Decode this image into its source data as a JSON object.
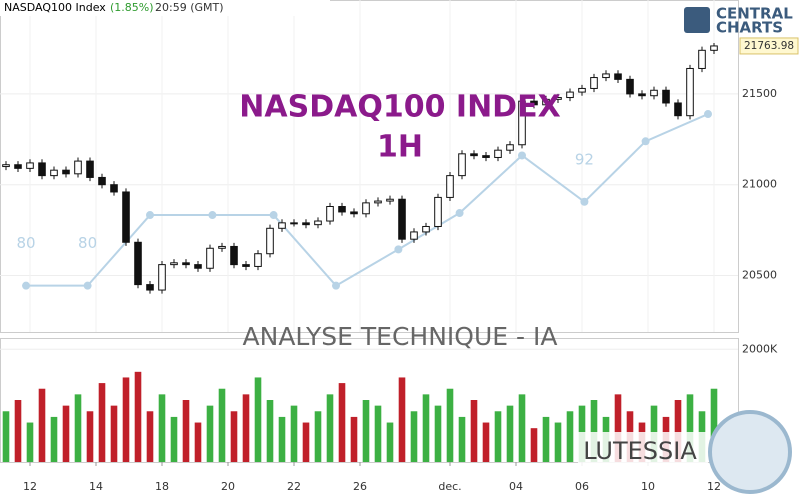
{
  "chart_data": {
    "type": "candlestick",
    "title": "NASDAQ100 Index",
    "change": "(1.85%)",
    "time": "20:59 (GMT)",
    "watermark_title": "NASDAQ100 INDEX",
    "watermark_timeframe": "1H",
    "subtitle": "ANALYSE TECHNIQUE - IA",
    "brand": "LUTESSIA",
    "logo": [
      "CENTRAL",
      "CHARTS"
    ],
    "open": [
      21100,
      21110,
      21090,
      21120,
      21050,
      21080,
      21060,
      21130,
      21040,
      21000,
      20960,
      20683,
      20450,
      20420,
      20560,
      20570,
      20560,
      20540,
      20650,
      20660,
      20560,
      20550,
      20620,
      20760,
      20790,
      20790,
      20780,
      20800,
      20880,
      20850,
      20840,
      20900,
      20910,
      20920,
      20700,
      20740,
      20770,
      20930,
      21050,
      21170,
      21160,
      21150,
      21190,
      21220,
      21460,
      21440,
      21470,
      21480,
      21510,
      21530,
      21590,
      21610,
      21580,
      21500,
      21490,
      21520,
      21450,
      21380,
      21640,
      21740
    ],
    "high": [
      21130,
      21130,
      21140,
      21140,
      21100,
      21100,
      21150,
      21150,
      21060,
      21020,
      20980,
      20703,
      20470,
      20580,
      20590,
      20590,
      20580,
      20670,
      20680,
      20680,
      20580,
      20640,
      20780,
      20810,
      20810,
      20810,
      20820,
      20900,
      20900,
      20870,
      20920,
      20930,
      20940,
      20940,
      20760,
      20790,
      20950,
      21070,
      21190,
      21190,
      21180,
      21210,
      21240,
      21480,
      21480,
      21490,
      21500,
      21530,
      21550,
      21610,
      21630,
      21630,
      21600,
      21520,
      21540,
      21540,
      21470,
      21660,
      21760,
      21780
    ],
    "low": [
      21080,
      21070,
      21070,
      21030,
      21030,
      21040,
      21040,
      21020,
      20980,
      20940,
      20663,
      20430,
      20400,
      20400,
      20540,
      20540,
      20520,
      20520,
      20630,
      20540,
      20530,
      20530,
      20600,
      20740,
      20770,
      20760,
      20760,
      20780,
      20830,
      20820,
      20820,
      20880,
      20890,
      20680,
      20680,
      20720,
      20750,
      20910,
      21030,
      21140,
      21130,
      21130,
      21170,
      21200,
      21420,
      21420,
      21450,
      21460,
      21490,
      21510,
      21570,
      21560,
      21480,
      21470,
      21470,
      21430,
      21360,
      21360,
      21620,
      21720
    ],
    "close": [
      21110,
      21090,
      21120,
      21050,
      21080,
      21060,
      21130,
      21040,
      21000,
      20960,
      20683,
      20450,
      20420,
      20560,
      20570,
      20560,
      20540,
      20650,
      20660,
      20560,
      20550,
      20620,
      20760,
      20790,
      20790,
      20780,
      20800,
      20880,
      20850,
      20840,
      20900,
      20910,
      20920,
      20700,
      20740,
      20770,
      20930,
      21050,
      21170,
      21160,
      21150,
      21190,
      21220,
      21460,
      21440,
      21470,
      21480,
      21510,
      21530,
      21590,
      21610,
      21580,
      21500,
      21490,
      21520,
      21450,
      21380,
      21640,
      21740,
      21763.98
    ],
    "xlim": [
      -0.5,
      61
    ],
    "xticks": [
      {
        "value": 2,
        "label": "12"
      },
      {
        "value": 7.5,
        "label": "14"
      },
      {
        "value": 13,
        "label": "18"
      },
      {
        "value": 18.5,
        "label": "20"
      },
      {
        "value": 24,
        "label": "22"
      },
      {
        "value": 29.5,
        "label": "26"
      },
      {
        "value": 37,
        "label": "dec."
      },
      {
        "value": 42.5,
        "label": "04"
      },
      {
        "value": 48,
        "label": "06"
      },
      {
        "value": 53.5,
        "label": "10"
      },
      {
        "value": 59,
        "label": "12"
      }
    ],
    "ylim": [
      20189,
      22017
    ],
    "yticks": [
      20500,
      21000,
      21500
    ],
    "grid": true,
    "up_color": "#ffffff",
    "down_color": "#111111",
    "indicator": {
      "color": "#b8d3e6",
      "x": [
        1.67,
        6.8,
        12,
        17.2,
        22.3,
        27.5,
        32.7,
        37.8,
        43,
        48.2,
        53.3,
        58.5
      ],
      "values": [
        20444,
        20444,
        20833,
        20833,
        20833,
        20444,
        20644,
        20844,
        21161,
        20906,
        21239,
        21389
      ],
      "labels": [
        "80",
        "80",
        "92"
      ]
    },
    "volume": {
      "values": [
        900,
        1100,
        700,
        1300,
        800,
        1000,
        1200,
        900,
        1400,
        1000,
        1500,
        1600,
        900,
        1200,
        800,
        1100,
        700,
        1000,
        1300,
        900,
        1200,
        1500,
        1100,
        800,
        1000,
        700,
        900,
        1200,
        1400,
        800,
        1100,
        1000,
        700,
        1500,
        900,
        1200,
        1000,
        1300,
        800,
        1100,
        700,
        900,
        1000,
        1200,
        600,
        800,
        700,
        900,
        1000,
        1100,
        800,
        1200,
        900,
        700,
        1000,
        800,
        1100,
        1200,
        900,
        1300
      ],
      "ylim": [
        0,
        2200
      ],
      "yticks": [
        {
          "value": 2000,
          "label": "2000K"
        }
      ],
      "up_color": "#3cb043",
      "down_color": "#c0202a"
    }
  }
}
